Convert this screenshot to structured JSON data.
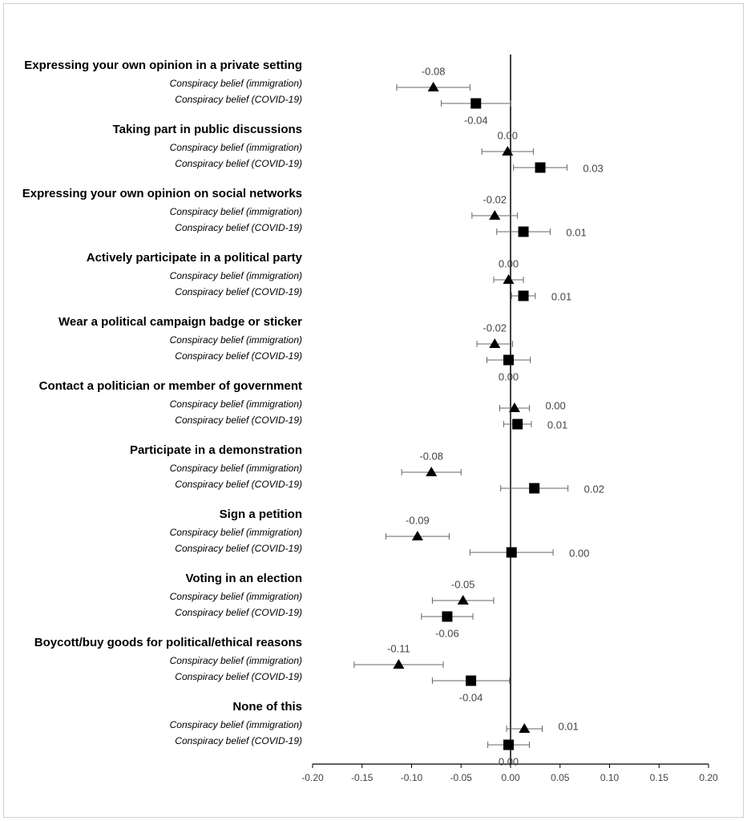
{
  "chart_data": {
    "type": "dot",
    "categories": [
      "Expressing your own opinion in a private setting",
      "Taking part in public discussions",
      "Expressing your own opinion on social networks",
      "Actively participate in a political party",
      "Wear a political campaign badge or sticker",
      "Contact a politician or member of government",
      "Participate in a demonstration",
      "Sign a petition",
      "Voting in an election",
      "Boycott/buy goods for political/ethical reasons",
      "None of this"
    ],
    "series": [
      {
        "name": "Conspiracy belief (immigration)",
        "color": "#000000",
        "marker": "triangle",
        "values": [
          -0.078,
          -0.003,
          -0.016,
          -0.002,
          -0.016,
          0.004,
          -0.08,
          -0.094,
          -0.048,
          -0.113,
          0.014
        ],
        "value_labels": [
          "-0.08",
          "0.00",
          "-0.02",
          "0.00",
          "-0.02",
          "0.00",
          "-0.08",
          "-0.09",
          "-0.05",
          "-0.11",
          "0.01"
        ],
        "errors": [
          0.037,
          0.026,
          0.023,
          0.015,
          0.018,
          0.015,
          0.03,
          0.032,
          0.031,
          0.045,
          0.018
        ]
      },
      {
        "name": "Conspiracy belief (COVID-19)",
        "color": "#000000",
        "marker": "square",
        "values": [
          -0.035,
          0.03,
          0.013,
          0.013,
          -0.002,
          0.007,
          0.024,
          0.001,
          -0.064,
          -0.04,
          -0.002
        ],
        "value_labels": [
          "-0.04",
          "0.03",
          "0.01",
          "0.01",
          "0.00",
          "0.01",
          "0.02",
          "0.00",
          "-0.06",
          "-0.04",
          "0.00"
        ],
        "errors": [
          0.035,
          0.027,
          0.027,
          0.012,
          0.022,
          0.014,
          0.034,
          0.042,
          0.026,
          0.039,
          0.021
        ]
      }
    ],
    "xlim": [
      -0.2,
      0.2
    ],
    "xticks": [
      {
        "value": -0.2,
        "label": "-0.20"
      },
      {
        "value": -0.15,
        "label": "-0.15"
      },
      {
        "value": -0.1,
        "label": "-0.10"
      },
      {
        "value": -0.05,
        "label": "-0.05"
      },
      {
        "value": 0,
        "label": "0.00"
      },
      {
        "value": 0.05,
        "label": "0.05"
      },
      {
        "value": 0.1,
        "label": "0.10"
      },
      {
        "value": 0.15,
        "label": "0.15"
      },
      {
        "value": 0.2,
        "label": "0.20"
      }
    ]
  }
}
